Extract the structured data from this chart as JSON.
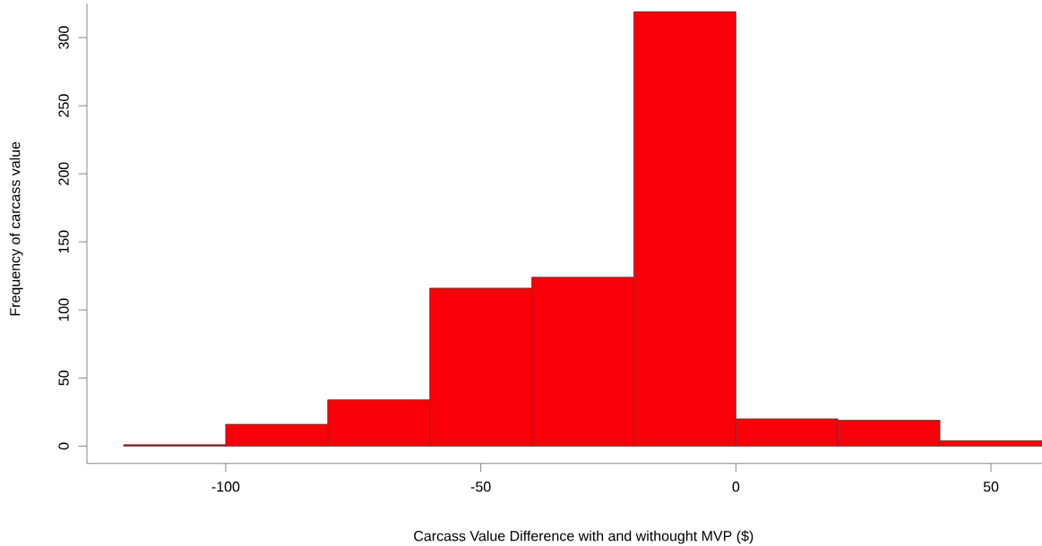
{
  "chart_data": {
    "type": "histogram",
    "xlabel": "Carcass Value Difference with and withought MVP ($)",
    "ylabel": "Frequency of carcass value",
    "bins": [
      -120,
      -100,
      -80,
      -60,
      -40,
      -20,
      0,
      20,
      40,
      60
    ],
    "values": [
      1,
      16,
      34,
      116,
      124,
      319,
      20,
      19,
      4
    ],
    "color": "#f90008",
    "xlim": [
      -127.2,
      60
    ],
    "ylim": [
      -12.76,
      325
    ],
    "xticks": [
      -100,
      -50,
      0,
      50
    ],
    "yticks": [
      0,
      50,
      100,
      150,
      200,
      250,
      300
    ]
  }
}
